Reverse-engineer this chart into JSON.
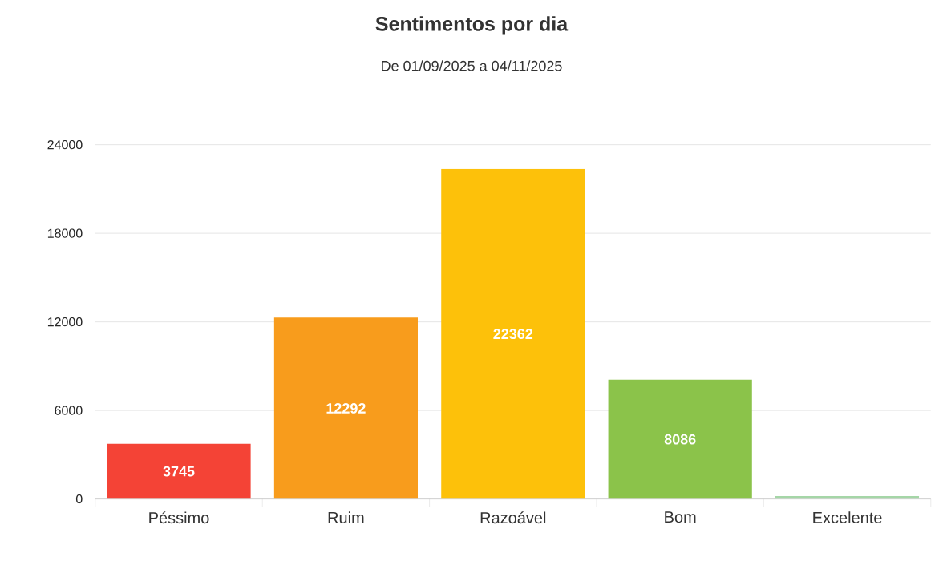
{
  "chart_data": {
    "type": "bar",
    "title": "Sentimentos por dia",
    "subtitle": "De 01/09/2025 a 04/11/2025",
    "categories": [
      "Péssimo",
      "Ruim",
      "Razoável",
      "Bom",
      "Excelente"
    ],
    "values": [
      3745,
      12292,
      22362,
      8086,
      200
    ],
    "value_labels": [
      "3745",
      "12292",
      "22362",
      "8086",
      null
    ],
    "colors": [
      "#f44336",
      "#f89c1c",
      "#fdc10a",
      "#8bc34a",
      "#a5d6a7"
    ],
    "ylim": [
      0,
      24000
    ],
    "yticks": [
      0,
      6000,
      12000,
      18000,
      24000
    ],
    "grid": "y"
  }
}
